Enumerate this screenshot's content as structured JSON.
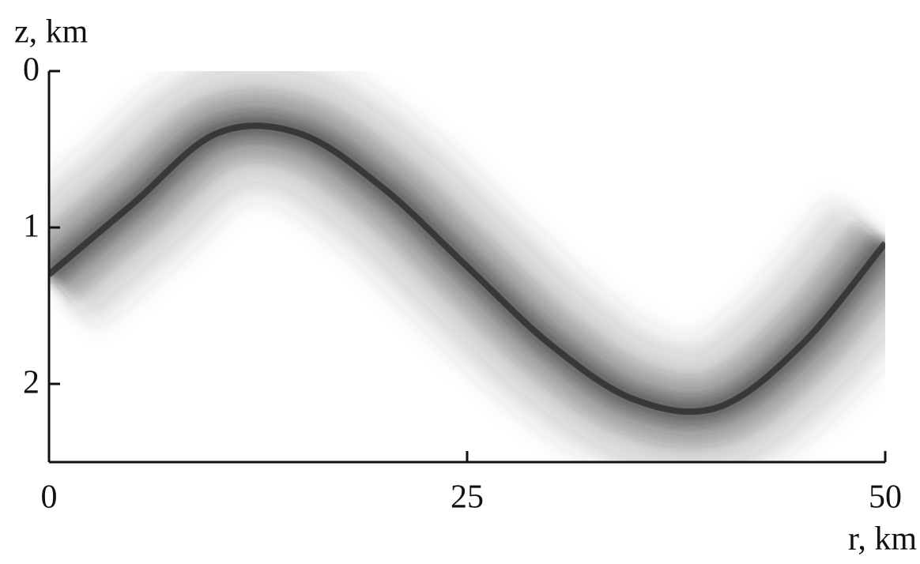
{
  "chart_data": {
    "type": "line",
    "x": [
      0,
      5,
      10,
      15,
      20,
      25,
      30,
      35,
      40,
      45,
      50
    ],
    "values": [
      1.3,
      0.85,
      0.4,
      0.4,
      0.75,
      1.25,
      1.75,
      2.1,
      2.15,
      1.75,
      1.1
    ],
    "color": "#2a2a2a",
    "xlabel": "r, km",
    "ylabel": "z, km",
    "xlim": [
      0,
      50
    ],
    "ylim": [
      0,
      2.5
    ],
    "xticks": [
      0,
      25,
      50
    ],
    "yticks": [
      0,
      1,
      2
    ],
    "y_inverted": true,
    "grid": false
  }
}
